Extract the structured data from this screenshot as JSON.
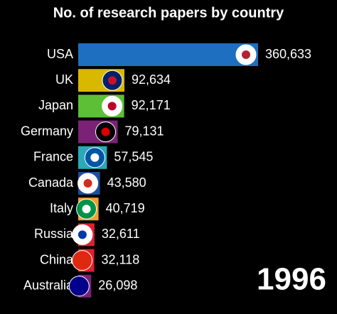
{
  "chart_data": {
    "type": "bar",
    "orientation": "horizontal",
    "title": "No. of research papers by country",
    "categories": [
      "USA",
      "UK",
      "Japan",
      "Germany",
      "France",
      "Canada",
      "Italy",
      "Russia",
      "China",
      "Australia"
    ],
    "values": [
      360633,
      92634,
      92171,
      79131,
      57545,
      43580,
      40719,
      32611,
      32118,
      26098
    ],
    "value_labels": [
      "360,633",
      "92,634",
      "92,171",
      "79,131",
      "57,545",
      "43,580",
      "40,719",
      "32,611",
      "32,118",
      "26,098"
    ],
    "colors": [
      "#1f6fc0",
      "#d8b900",
      "#5cbf35",
      "#7a2376",
      "#2aaab9",
      "#1f4e9c",
      "#f0a030",
      "#e0202f",
      "#e0202f",
      "#7a2376"
    ],
    "year": "1996"
  }
}
